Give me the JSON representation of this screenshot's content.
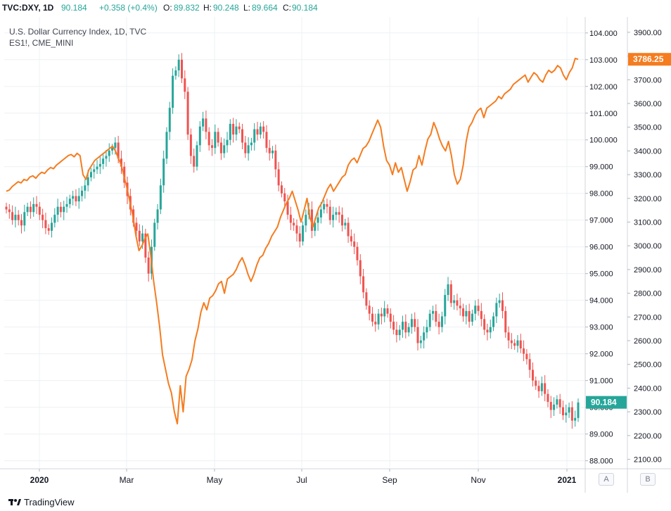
{
  "header": {
    "symbol": "TVC:DXY, 1D",
    "last": "90.184",
    "change": "+0.358 (+0.4%)",
    "open_label": "O:",
    "open": "89.832",
    "high_label": "H:",
    "high": "90.248",
    "low_label": "L:",
    "low": "89.664",
    "close_label": "C:",
    "close": "90.184"
  },
  "legend": {
    "main_title": "U.S. Dollar Currency Index, 1D, TVC",
    "overlay_title": "ES1!, CME_MINI"
  },
  "footer": {
    "brand": "TradingView",
    "scale_a": "A",
    "scale_b": "B"
  },
  "colors": {
    "up": "#26a69a",
    "down": "#ef5350",
    "overlay": "#f57c1f",
    "grid": "#eef0f3",
    "axis_text": "#131722",
    "price_tag": "#26a69a",
    "overlay_tag": "#f57c1f"
  },
  "chart_data": {
    "type": "line",
    "x_ticks": [
      "2020",
      "Mar",
      "May",
      "Jul",
      "Sep",
      "Nov",
      "2021"
    ],
    "left_axis": {
      "series": "U.S. Dollar Currency Index",
      "ylim": [
        87.7,
        104.6
      ],
      "ticks": [
        "88.000",
        "89.000",
        "90.000",
        "91.000",
        "92.000",
        "93.000",
        "94.000",
        "95.000",
        "96.000",
        "97.000",
        "98.000",
        "99.000",
        "100.000",
        "101.000",
        "102.000",
        "103.000",
        "104.000"
      ],
      "last_value": "90.184"
    },
    "right_axis": {
      "series": "ES1!, CME_MINI",
      "ylim": [
        2060,
        3965
      ],
      "ticks": [
        "2100.00",
        "2200.00",
        "2300.00",
        "2400.00",
        "2500.00",
        "2600.00",
        "2700.00",
        "2800.00",
        "2900.00",
        "3000.00",
        "3100.00",
        "3200.00",
        "3300.00",
        "3400.00",
        "3500.00",
        "3600.00",
        "3700.00",
        "3800.00",
        "3900.00"
      ],
      "last_value": "3786.25"
    },
    "dxy_close": [
      97.4,
      97.3,
      97.0,
      97.2,
      97.0,
      96.8,
      97.3,
      97.5,
      97.3,
      97.6,
      97.5,
      97.2,
      97.0,
      96.7,
      96.6,
      96.9,
      97.2,
      97.5,
      97.3,
      97.5,
      97.6,
      97.8,
      97.9,
      97.7,
      97.9,
      98.1,
      98.3,
      98.6,
      98.8,
      98.9,
      99.0,
      99.1,
      99.3,
      99.4,
      99.6,
      99.7,
      99.9,
      99.3,
      99.0,
      98.4,
      97.9,
      97.4,
      96.9,
      96.6,
      96.2,
      96.5,
      95.6,
      95.0,
      96.0,
      96.9,
      97.4,
      98.3,
      99.3,
      100.3,
      101.2,
      102.4,
      102.6,
      103.0,
      102.3,
      101.8,
      100.2,
      99.4,
      99.0,
      99.8,
      100.5,
      100.8,
      100.3,
      99.8,
      99.7,
      100.3,
      99.9,
      99.5,
      99.8,
      100.0,
      100.6,
      100.2,
      100.5,
      100.4,
      99.9,
      99.5,
      99.8,
      99.9,
      100.4,
      100.2,
      100.5,
      100.3,
      99.7,
      99.5,
      99.6,
      98.9,
      98.3,
      98.0,
      97.7,
      97.2,
      96.9,
      96.8,
      96.5,
      96.2,
      96.8,
      97.2,
      97.4,
      96.6,
      96.9,
      97.1,
      97.4,
      97.6,
      97.5,
      97.0,
      97.2,
      97.3,
      97.2,
      96.8,
      96.9,
      96.4,
      96.2,
      96.0,
      95.5,
      94.9,
      94.3,
      93.8,
      93.5,
      93.2,
      93.1,
      93.5,
      93.4,
      93.7,
      93.5,
      93.2,
      92.9,
      92.7,
      92.9,
      93.2,
      92.8,
      93.0,
      93.3,
      93.0,
      92.4,
      92.5,
      92.8,
      93.0,
      93.5,
      93.6,
      93.2,
      93.0,
      93.4,
      94.2,
      94.6,
      93.9,
      94.0,
      93.8,
      93.7,
      93.4,
      93.6,
      93.2,
      93.5,
      93.8,
      93.6,
      93.3,
      92.9,
      92.8,
      93.0,
      93.4,
      93.9,
      94.0,
      93.6,
      92.8,
      92.5,
      92.4,
      92.3,
      92.5,
      92.2,
      92.0,
      91.8,
      91.4,
      91.0,
      90.8,
      90.6,
      90.9,
      90.5,
      90.2,
      89.9,
      90.1,
      90.3,
      90.0,
      89.7,
      89.8,
      90.0,
      89.5,
      89.6,
      90.18
    ],
    "es_close": [
      3230,
      3235,
      3250,
      3260,
      3270,
      3265,
      3280,
      3275,
      3290,
      3295,
      3285,
      3300,
      3310,
      3305,
      3320,
      3330,
      3325,
      3340,
      3350,
      3360,
      3370,
      3380,
      3385,
      3375,
      3390,
      3380,
      3300,
      3280,
      3320,
      3340,
      3360,
      3370,
      3380,
      3390,
      3400,
      3410,
      3420,
      3400,
      3370,
      3340,
      3290,
      3240,
      3180,
      3120,
      3040,
      2980,
      3000,
      3030,
      3050,
      2960,
      2850,
      2760,
      2660,
      2540,
      2480,
      2420,
      2380,
      2300,
      2250,
      2410,
      2300,
      2450,
      2480,
      2520,
      2600,
      2650,
      2720,
      2760,
      2730,
      2780,
      2790,
      2810,
      2840,
      2850,
      2800,
      2860,
      2870,
      2880,
      2900,
      2930,
      2950,
      2920,
      2880,
      2850,
      2880,
      2920,
      2950,
      2960,
      2990,
      3010,
      3040,
      3060,
      3080,
      3120,
      3150,
      3180,
      3200,
      3230,
      3190,
      3150,
      3100,
      3150,
      3200,
      3120,
      3080,
      3120,
      3160,
      3180,
      3210,
      3240,
      3260,
      3230,
      3250,
      3270,
      3290,
      3300,
      3340,
      3360,
      3370,
      3350,
      3380,
      3410,
      3420,
      3440,
      3470,
      3500,
      3530,
      3500,
      3420,
      3360,
      3340,
      3300,
      3350,
      3310,
      3330,
      3280,
      3230,
      3270,
      3320,
      3330,
      3380,
      3340,
      3400,
      3450,
      3470,
      3520,
      3490,
      3450,
      3420,
      3400,
      3440,
      3380,
      3300,
      3260,
      3280,
      3340,
      3440,
      3500,
      3520,
      3550,
      3570,
      3580,
      3540,
      3580,
      3590,
      3600,
      3610,
      3630,
      3620,
      3640,
      3650,
      3660,
      3680,
      3690,
      3700,
      3710,
      3720,
      3690,
      3710,
      3730,
      3720,
      3700,
      3690,
      3720,
      3740,
      3730,
      3740,
      3760,
      3750,
      3720,
      3700,
      3730,
      3750,
      3790,
      3786.25
    ]
  }
}
